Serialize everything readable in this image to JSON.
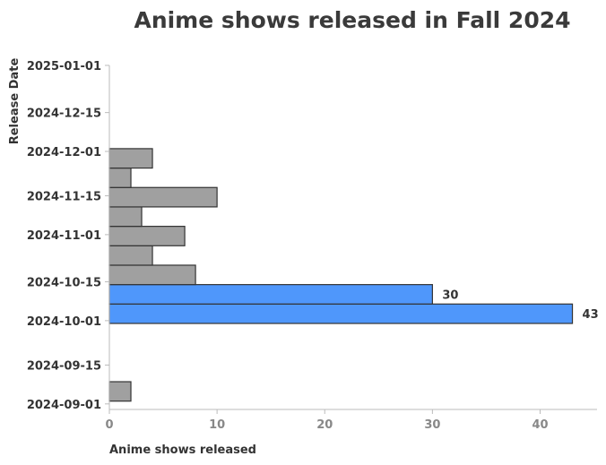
{
  "chart_data": {
    "type": "bar",
    "orientation": "horizontal",
    "title": "Anime shows released in Fall 2024",
    "xlabel": "Anime shows released",
    "ylabel": "Release Date",
    "xlim": [
      0,
      45
    ],
    "x_ticks": [
      0,
      10,
      20,
      30,
      40
    ],
    "y_range": [
      "2024-08-30",
      "2025-01-01"
    ],
    "y_ticks": [
      "2025-01-01",
      "2024-12-15",
      "2024-12-01",
      "2024-11-15",
      "2024-11-01",
      "2024-10-15",
      "2024-10-01",
      "2024-09-15",
      "2024-09-01"
    ],
    "bins": [
      {
        "start": "2024-09-02",
        "end": "2024-09-09",
        "value": 2,
        "highlight": false
      },
      {
        "start": "2024-09-30",
        "end": "2024-10-07",
        "value": 43,
        "highlight": true,
        "label": "43"
      },
      {
        "start": "2024-10-07",
        "end": "2024-10-14",
        "value": 30,
        "highlight": true,
        "label": "30"
      },
      {
        "start": "2024-10-14",
        "end": "2024-10-21",
        "value": 8,
        "highlight": false
      },
      {
        "start": "2024-10-21",
        "end": "2024-10-28",
        "value": 4,
        "highlight": false
      },
      {
        "start": "2024-10-28",
        "end": "2024-11-04",
        "value": 7,
        "highlight": false
      },
      {
        "start": "2024-11-04",
        "end": "2024-11-11",
        "value": 3,
        "highlight": false
      },
      {
        "start": "2024-11-11",
        "end": "2024-11-18",
        "value": 10,
        "highlight": false
      },
      {
        "start": "2024-11-18",
        "end": "2024-11-25",
        "value": 2,
        "highlight": false
      },
      {
        "start": "2024-11-25",
        "end": "2024-12-02",
        "value": 4,
        "highlight": false
      }
    ],
    "grid": false,
    "colors": {
      "default": "#a0a0a0",
      "highlight": "#4f97fb",
      "edge": "#333333",
      "axis": "#bbbbbb"
    }
  }
}
